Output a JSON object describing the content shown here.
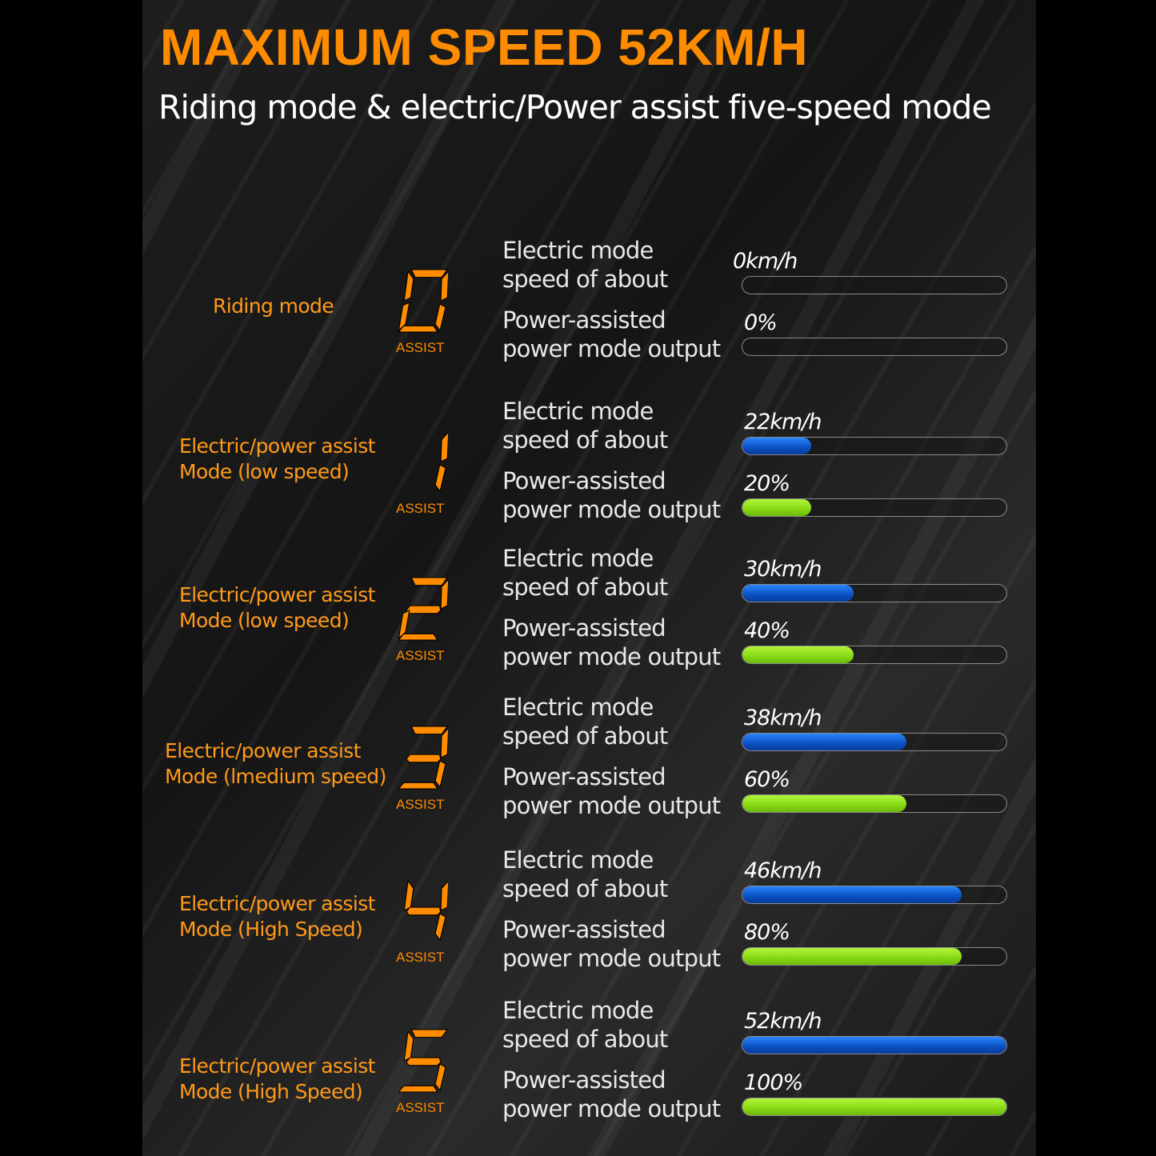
{
  "title": "MAXIMUM SPEED 52KM/H",
  "subtitle": "Riding mode & electric/Power assist five-speed mode",
  "colors": {
    "accent": "#ff8c00",
    "speed_bar": "#0a5fd8",
    "power_bar": "#8fe01a"
  },
  "assist_label": "ASSIST",
  "speed_label": [
    "Electric mode",
    "speed of about"
  ],
  "power_label": [
    "Power-assisted",
    "power mode output"
  ],
  "modes": [
    {
      "level": "0",
      "label": [
        "Riding mode",
        ""
      ],
      "speed": "0km/h",
      "power": "0%",
      "speed_fill": 0,
      "power_fill": 0
    },
    {
      "level": "1",
      "label": [
        "Electric/power assist",
        "Mode (low speed)"
      ],
      "speed": "22km/h",
      "power": "20%",
      "speed_fill": 0.26,
      "power_fill": 0.26
    },
    {
      "level": "2",
      "label": [
        "Electric/power assist",
        "Mode (low speed)"
      ],
      "speed": "30km/h",
      "power": "40%",
      "speed_fill": 0.42,
      "power_fill": 0.42
    },
    {
      "level": "3",
      "label": [
        "Electric/power assist",
        "Mode (lmedium speed)"
      ],
      "speed": "38km/h",
      "power": "60%",
      "speed_fill": 0.62,
      "power_fill": 0.62
    },
    {
      "level": "4",
      "label": [
        "Electric/power assist",
        "Mode (High Speed)"
      ],
      "speed": "46km/h",
      "power": "80%",
      "speed_fill": 0.83,
      "power_fill": 0.83
    },
    {
      "level": "5",
      "label": [
        "Electric/power assist",
        "Mode (High Speed)"
      ],
      "speed": "52km/h",
      "power": "100%",
      "speed_fill": 1,
      "power_fill": 1
    }
  ]
}
